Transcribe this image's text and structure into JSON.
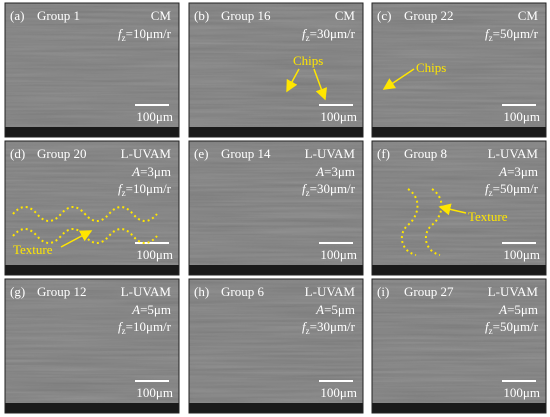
{
  "panels": [
    {
      "label": "(a)",
      "group": "Group 1",
      "mode": "CM",
      "params": [
        [
          "f",
          "z",
          "=10μm/r"
        ]
      ],
      "scale": "100μm"
    },
    {
      "label": "(b)",
      "group": "Group 16",
      "mode": "CM",
      "params": [
        [
          "f",
          "z",
          "=30μm/r"
        ]
      ],
      "scale": "100μm",
      "note": "Chips"
    },
    {
      "label": "(c)",
      "group": "Group 22",
      "mode": "CM",
      "params": [
        [
          "f",
          "z",
          "=50μm/r"
        ]
      ],
      "scale": "100μm",
      "note": "Chips"
    },
    {
      "label": "(d)",
      "group": "Group 20",
      "mode": "L-UVAM",
      "params": [
        [
          "A",
          "",
          "=3μm"
        ],
        [
          "f",
          "z",
          "=10μm/r"
        ]
      ],
      "scale": "100μm",
      "note": "Texture"
    },
    {
      "label": "(e)",
      "group": "Group 14",
      "mode": "L-UVAM",
      "params": [
        [
          "A",
          "",
          "=3μm"
        ],
        [
          "f",
          "z",
          "=30μm/r"
        ]
      ],
      "scale": "100μm"
    },
    {
      "label": "(f)",
      "group": "Group 8",
      "mode": "L-UVAM",
      "params": [
        [
          "A",
          "",
          "=3μm"
        ],
        [
          "f",
          "z",
          "=50μm/r"
        ]
      ],
      "scale": "100μm",
      "note": "Texture"
    },
    {
      "label": "(g)",
      "group": "Group 12",
      "mode": "L-UVAM",
      "params": [
        [
          "A",
          "",
          "=5μm"
        ],
        [
          "f",
          "z",
          "=10μm/r"
        ]
      ],
      "scale": "100μm"
    },
    {
      "label": "(h)",
      "group": "Group 6",
      "mode": "L-UVAM",
      "params": [
        [
          "A",
          "",
          "=5μm"
        ],
        [
          "f",
          "z",
          "=30μm/r"
        ]
      ],
      "scale": "100μm"
    },
    {
      "label": "(i)",
      "group": "Group 27",
      "mode": "L-UVAM",
      "params": [
        [
          "A",
          "",
          "=5μm"
        ],
        [
          "f",
          "z",
          "=50μm/r"
        ]
      ],
      "scale": "100μm"
    }
  ]
}
